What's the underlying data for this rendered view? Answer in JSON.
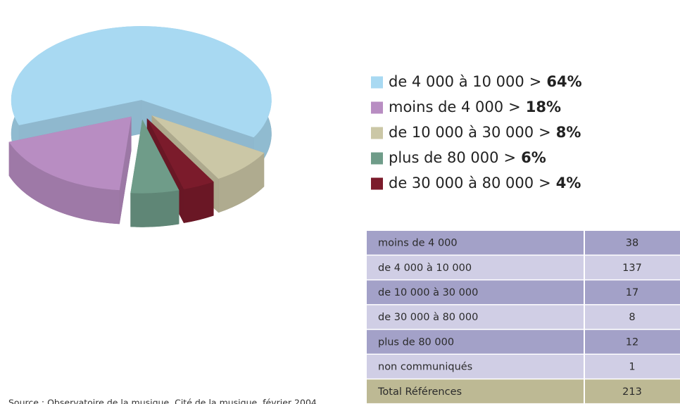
{
  "chart_data": {
    "type": "pie",
    "categories": [
      "de 4 000 à 10 000",
      "moins de 4 000",
      "de 10 000 à 30 000",
      "plus de 80 000",
      "de 30 000 à 80 000"
    ],
    "values": [
      64,
      18,
      8,
      6,
      4
    ],
    "value_labels": [
      "64%",
      "18%",
      "8%",
      "6%",
      "4%"
    ],
    "separator": ">",
    "colors": [
      "#a8d9f2",
      "#b88dc2",
      "#cbc7a6",
      "#6f9c89",
      "#7b1b2b"
    ]
  },
  "table": {
    "rows": [
      [
        "moins de 4 000",
        "38"
      ],
      [
        "de 4 000 à 10 000",
        "137"
      ],
      [
        "de 10 000 à 30 000",
        "17"
      ],
      [
        "de 30 000 à 80 000",
        "8"
      ],
      [
        "plus de 80 000",
        "12"
      ],
      [
        "non communiqués",
        "1"
      ]
    ],
    "total": [
      "Total Références",
      "213"
    ]
  },
  "source": "Source : Observatoire de la musique, Cité de la musique, février 2004"
}
